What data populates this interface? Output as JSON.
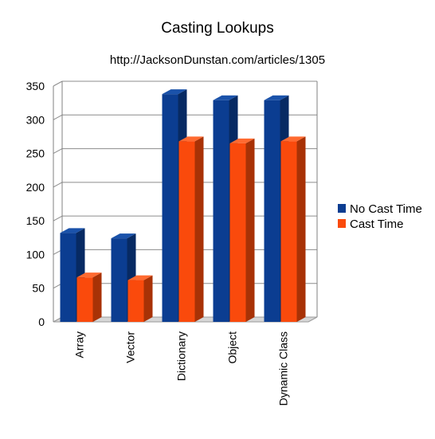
{
  "chart_data": {
    "type": "bar",
    "title": "Casting Lookups",
    "subtitle": "http://JacksonDunstan.com/articles/1305",
    "categories": [
      "Array",
      "Vector",
      "Dictionary",
      "Object",
      "Dynamic Class"
    ],
    "series": [
      {
        "name": "No Cast Time",
        "values": [
          132,
          124,
          338,
          329,
          329
        ],
        "color": "#0b3d91",
        "side_color": "#072a63",
        "top_color": "#1a52aa"
      },
      {
        "name": "Cast Time",
        "values": [
          66,
          62,
          268,
          265,
          268
        ],
        "color": "#fa4a0c",
        "side_color": "#a83206",
        "top_color": "#ff6a30"
      }
    ],
    "xlabel": "",
    "ylabel": "",
    "ylim": [
      0,
      350
    ],
    "yticks": [
      0,
      50,
      100,
      150,
      200,
      250,
      300,
      350
    ],
    "grid": true,
    "legend_position": "right",
    "style": "3d-bar"
  }
}
